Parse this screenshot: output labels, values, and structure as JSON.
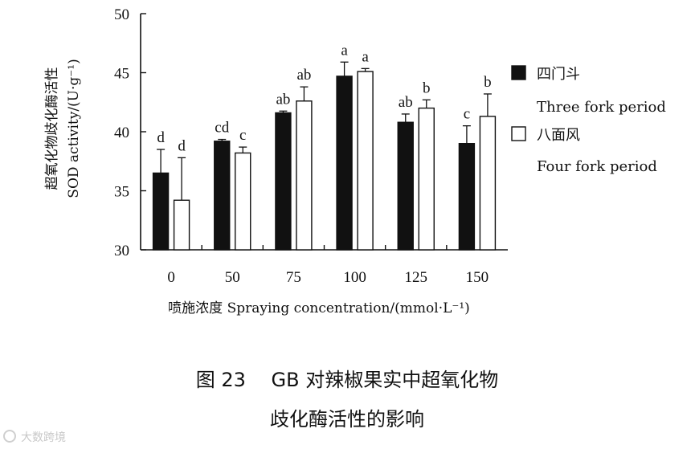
{
  "chart_data": {
    "type": "bar",
    "categories": [
      "0",
      "50",
      "75",
      "100",
      "125",
      "150"
    ],
    "series": [
      {
        "name": "四门斗 Three fork period",
        "name_zh": "四门斗",
        "name_en": "Three fork period",
        "fill": "#111111",
        "values": [
          36.5,
          39.2,
          41.6,
          44.7,
          40.8,
          39.0
        ],
        "errors": [
          2.0,
          0.15,
          0.15,
          1.2,
          0.7,
          1.5
        ],
        "labels": [
          "d",
          "cd",
          "ab",
          "a",
          "ab",
          "c"
        ]
      },
      {
        "name": "八面风 Four fork period",
        "name_zh": "八面风",
        "name_en": "Four fork period",
        "fill": "#ffffff",
        "values": [
          34.2,
          38.2,
          42.6,
          45.1,
          42.0,
          41.3
        ],
        "errors": [
          3.6,
          0.5,
          1.2,
          0.25,
          0.7,
          1.9
        ],
        "labels": [
          "d",
          "c",
          "ab",
          "a",
          "b",
          "b"
        ]
      }
    ],
    "ylim": [
      30,
      50
    ],
    "yticks": [
      "30",
      "35",
      "40",
      "45",
      "50"
    ],
    "ylabel_zh": "超氧化物歧化酶活性",
    "ylabel_en": "SOD activity/(U·g⁻¹)",
    "xlabel": "喷施浓度 Spraying concentration/(mmol·L⁻¹)",
    "legend_position": "right",
    "grid": false
  },
  "caption": {
    "line1": "图 23　 GB 对辣椒果实中超氧化物",
    "line2": "歧化酶活性的影响"
  },
  "watermark": "大数跨境"
}
